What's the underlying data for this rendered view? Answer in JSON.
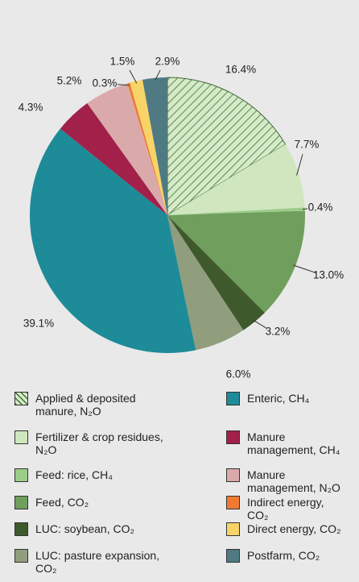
{
  "chart_data": {
    "type": "pie",
    "categories": [
      "Applied & deposited manure, N₂O",
      "Fertilizer & crop residues, N₂O",
      "Feed: rice, CH₄",
      "Feed, CO₂",
      "LUC: soybean, CO₂",
      "LUC: pasture expansion, CO₂",
      "Enteric, CH₄",
      "Manure management, CH₄",
      "Manure management, N₂O",
      "Indirect energy, CO₂",
      "Direct energy, CO₂",
      "Postfarm, CO₂"
    ],
    "values": [
      16.4,
      7.7,
      0.4,
      13.0,
      3.2,
      6.0,
      39.1,
      4.3,
      5.2,
      0.3,
      1.5,
      2.9
    ],
    "value_labels": [
      "16.4%",
      "7.7%",
      "0.4%",
      "13.0%",
      "3.2%",
      "6.0%",
      "39.1%",
      "4.3%",
      "5.2%",
      "0.3%",
      "1.5%",
      "2.9%"
    ],
    "colors": [
      "#d5eac6",
      "#cfe6bf",
      "#9ccc8a",
      "#6f9e5d",
      "#3e5a2c",
      "#909e7d",
      "#1e8b99",
      "#a2214a",
      "#d9aaa9",
      "#ef7a30",
      "#f8d368",
      "#4f7a84"
    ],
    "hatch": [
      true,
      false,
      false,
      false,
      false,
      false,
      false,
      false,
      false,
      false,
      false,
      false
    ]
  }
}
